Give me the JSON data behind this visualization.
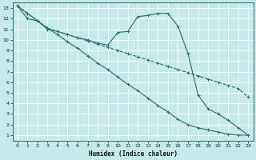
{
  "xlabel": "Humidex (Indice chaleur)",
  "bg_color": "#c5eaea",
  "grid_color": "#ffffff",
  "line_color": "#2a6e65",
  "xlim": [
    -0.5,
    23.5
  ],
  "ylim": [
    0.5,
    13.5
  ],
  "xticks": [
    0,
    1,
    2,
    3,
    4,
    5,
    6,
    7,
    8,
    9,
    10,
    11,
    12,
    13,
    14,
    15,
    16,
    17,
    18,
    19,
    20,
    21,
    22,
    23
  ],
  "yticks": [
    1,
    2,
    3,
    4,
    5,
    6,
    7,
    8,
    9,
    10,
    11,
    12,
    13
  ],
  "series_dashed_x": [
    0,
    1,
    2,
    3,
    4,
    5,
    6,
    7,
    8,
    9,
    10,
    11,
    12,
    13,
    14,
    15,
    16,
    17,
    18,
    19,
    20,
    21,
    22,
    23
  ],
  "series_dashed_y": [
    13.2,
    12.5,
    11.8,
    11.1,
    10.8,
    10.5,
    10.2,
    9.9,
    9.6,
    9.3,
    9.0,
    8.7,
    8.4,
    8.1,
    7.8,
    7.5,
    7.2,
    6.9,
    6.6,
    6.3,
    6.0,
    5.7,
    5.4,
    4.6
  ],
  "series_straight_x": [
    0,
    1,
    2,
    3,
    4,
    5,
    6,
    7,
    8,
    9,
    10,
    11,
    12,
    13,
    14,
    15,
    16,
    17,
    18,
    19,
    20,
    21,
    22,
    23
  ],
  "series_straight_y": [
    13.2,
    12.5,
    11.8,
    11.1,
    10.5,
    9.8,
    9.2,
    8.5,
    7.8,
    7.2,
    6.5,
    5.8,
    5.2,
    4.5,
    3.8,
    3.2,
    2.5,
    2.0,
    1.7,
    1.5,
    1.3,
    1.1,
    1.0,
    1.0
  ],
  "series_curve_x": [
    0,
    1,
    2,
    3,
    4,
    5,
    6,
    7,
    8,
    9,
    10,
    11,
    12,
    13,
    14,
    15,
    16,
    17,
    18,
    19,
    20,
    21,
    22,
    23
  ],
  "series_curve_y": [
    13.2,
    12.0,
    11.8,
    11.0,
    10.8,
    10.5,
    10.2,
    10.0,
    9.7,
    9.5,
    10.7,
    10.8,
    12.2,
    12.3,
    12.5,
    12.5,
    11.3,
    8.7,
    4.8,
    3.5,
    3.0,
    2.4,
    1.7,
    1.0
  ]
}
